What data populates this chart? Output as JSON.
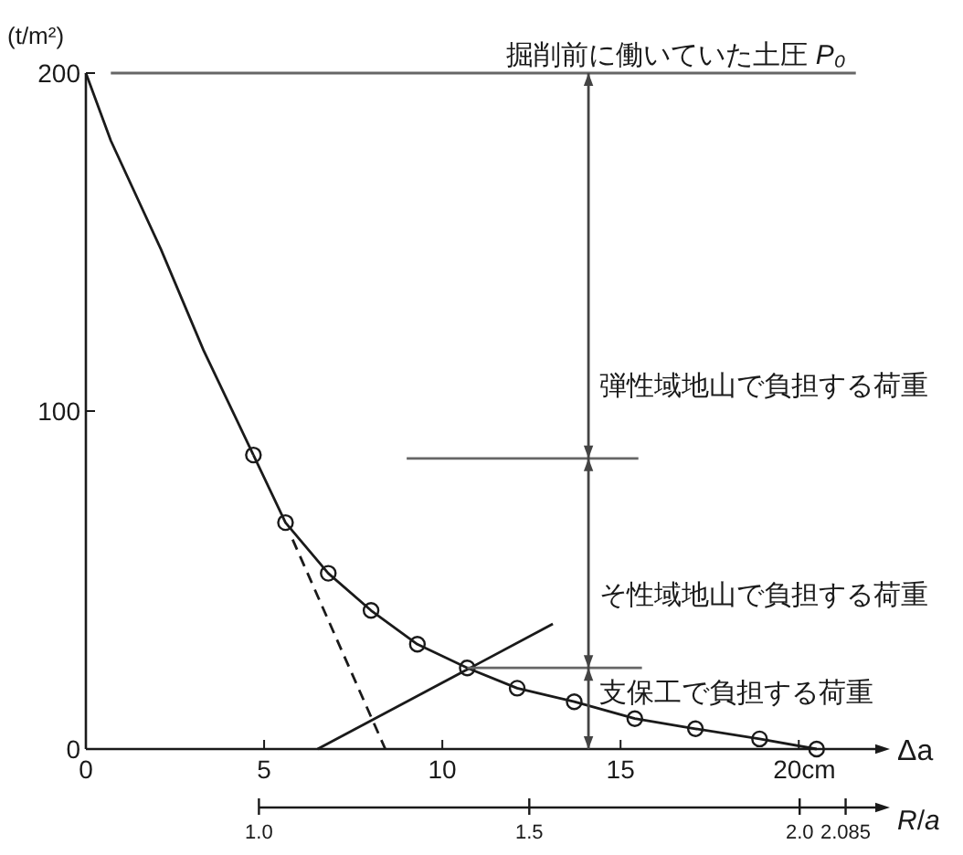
{
  "chart_data": {
    "type": "line",
    "ylabel": "(t/m²)",
    "xlabel": "Δa",
    "x2label": "*R*/*a*",
    "xlim": [
      0,
      22.3
    ],
    "ylim": [
      0,
      200
    ],
    "xticks": [
      0,
      5,
      10,
      15,
      {
        "value": 20,
        "label": "20cm"
      }
    ],
    "yticks": [
      0,
      100,
      200
    ],
    "x2lim": [
      0.68,
      2.15
    ],
    "x2ticks": [
      {
        "value": 1.0,
        "label": "1.0"
      },
      1.5,
      {
        "value": 2.0,
        "label": "2.0"
      },
      2.085
    ],
    "series": [
      {
        "color": "#1a1a1a",
        "x": [
          0,
          0.7,
          2.1,
          3.3,
          4.7
        ],
        "values": [
          200,
          180,
          148,
          118,
          87
        ]
      },
      {
        "marker": "circle",
        "color": "#1a1a1a",
        "x": [
          4.7,
          5.6,
          6.8,
          8.0,
          9.3,
          10.7,
          12.1,
          13.7,
          15.4,
          17.1,
          18.9,
          20.5
        ],
        "values": [
          87,
          67,
          52,
          41,
          31,
          24,
          18,
          14,
          9,
          6,
          3,
          0
        ]
      },
      {
        "line_style": "dashed",
        "color": "#1a1a1a",
        "x": [
          5.8,
          8.4
        ],
        "values": [
          62,
          0
        ]
      },
      {
        "color": "#1a1a1a",
        "x": [
          6.5,
          13.1
        ],
        "values": [
          0,
          37
        ]
      },
      {
        "color": "#666666",
        "x": [
          0.7,
          21.6
        ],
        "values": [
          200,
          200
        ]
      },
      {
        "color": "#666666",
        "x": [
          9.0,
          15.5
        ],
        "values": [
          86,
          86
        ]
      },
      {
        "color": "#666666",
        "x": [
          10.7,
          15.6
        ],
        "values": [
          24,
          24
        ]
      },
      {
        "color": "#444444",
        "x": [
          14.1,
          14.1,
          14.1,
          14.1
        ],
        "values": [
          200,
          86,
          24,
          0
        ]
      }
    ],
    "annotations": [
      {
        "text": "掘削前に働いていた土圧 *P₀*",
        "x": 11.8,
        "y": 200
      },
      "弾性域地山で負担する荷重",
      "そ性域地山で負担する荷重",
      "支保工で負担する荷重"
    ]
  }
}
